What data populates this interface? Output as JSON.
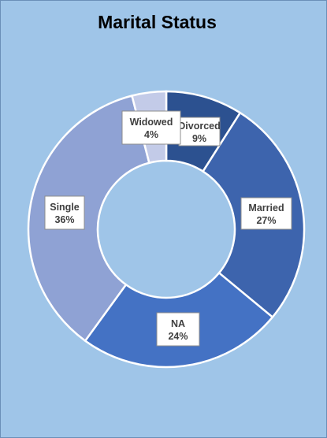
{
  "chart_data": {
    "type": "pie",
    "title": "Marital Status",
    "categories": [
      "Divorced",
      "Married",
      "NA",
      "Single",
      "Widowed"
    ],
    "values": [
      9,
      27,
      24,
      36,
      4
    ],
    "labels": [
      "9%",
      "27%",
      "24%",
      "36%",
      "4%"
    ],
    "colors": [
      "#2c5190",
      "#3d64ad",
      "#4472c4",
      "#8fa2d4",
      "#c3cbe8"
    ]
  }
}
